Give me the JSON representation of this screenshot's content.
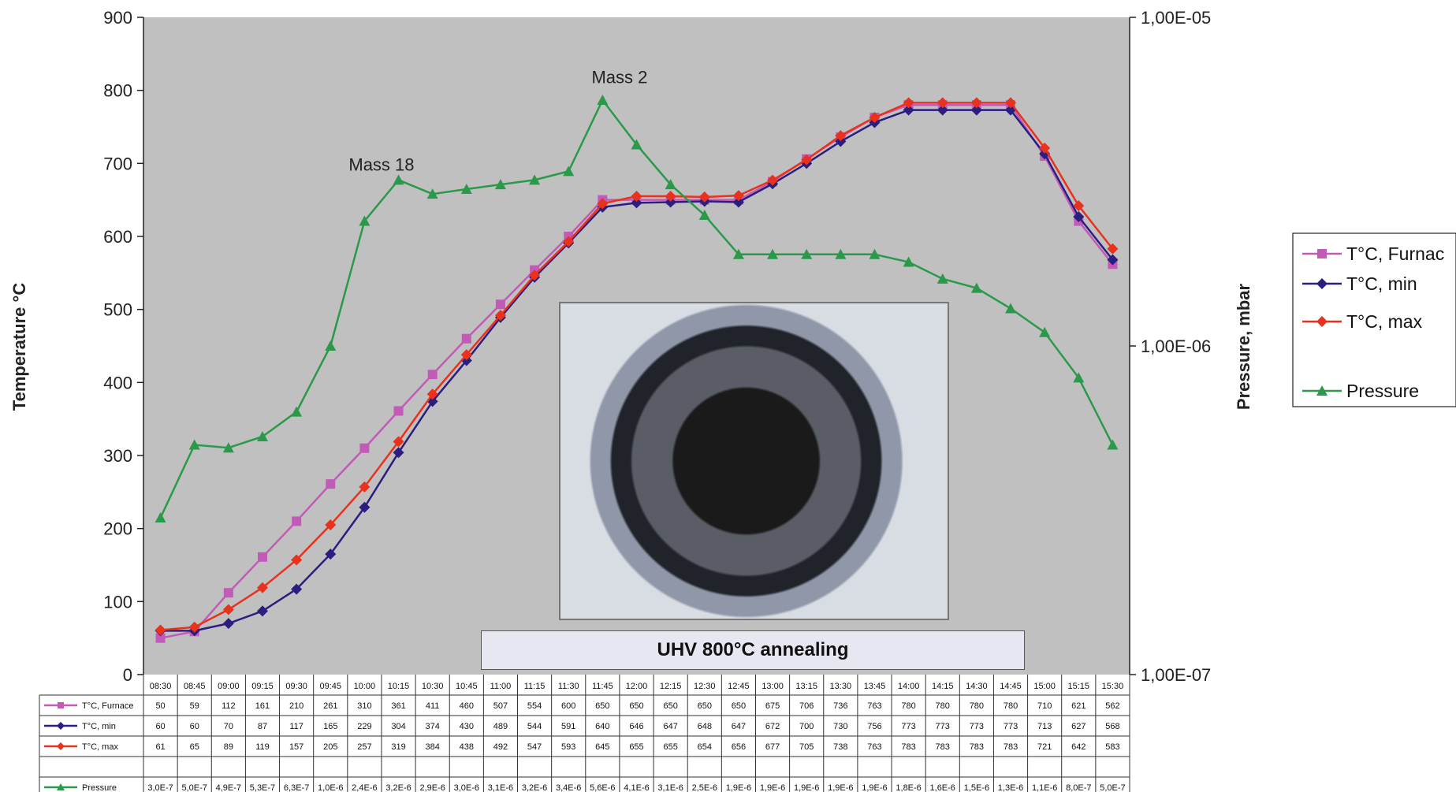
{
  "chart_data": {
    "type": "line",
    "x": [
      "08:30",
      "08:45",
      "09:00",
      "09:15",
      "09:30",
      "09:45",
      "10:00",
      "10:15",
      "10:30",
      "10:45",
      "11:00",
      "11:15",
      "11:30",
      "11:45",
      "12:00",
      "12:15",
      "12:30",
      "12:45",
      "13:00",
      "13:15",
      "13:30",
      "13:45",
      "14:00",
      "14:15",
      "14:30",
      "14:45",
      "15:00",
      "15:15",
      "15:30"
    ],
    "ylabel": "Temperature °C",
    "y2label": "Pressure, mbar",
    "ylim": [
      0,
      900
    ],
    "yticks": [
      "0",
      "100",
      "200",
      "300",
      "400",
      "500",
      "600",
      "700",
      "800",
      "900"
    ],
    "y2scale": "log",
    "y2lim": [
      1e-07,
      1e-05
    ],
    "y2ticks": [
      "1,00E-07",
      "1,00E-06",
      "1,00E-05"
    ],
    "legend_position": "right",
    "series": [
      {
        "name": "T°C, Furnace",
        "legend_name": "T°C, Furnac",
        "table_label": "T°C, Furnace",
        "axis": "left",
        "color": "#c25bb8",
        "marker": "square",
        "values": [
          50,
          59,
          112,
          161,
          210,
          261,
          310,
          361,
          411,
          460,
          507,
          554,
          600,
          650,
          650,
          650,
          650,
          650,
          675,
          706,
          736,
          763,
          780,
          780,
          780,
          780,
          710,
          621,
          562
        ]
      },
      {
        "name": "T°C, min",
        "legend_name": "T°C, min",
        "table_label": "T°C, min",
        "axis": "left",
        "color": "#2a1f80",
        "marker": "diamond",
        "values": [
          60,
          60,
          70,
          87,
          117,
          165,
          229,
          304,
          374,
          430,
          489,
          544,
          591,
          640,
          646,
          647,
          648,
          647,
          672,
          700,
          730,
          756,
          773,
          773,
          773,
          773,
          713,
          627,
          568
        ]
      },
      {
        "name": "T°C, max",
        "legend_name": "T°C, max",
        "table_label": "T°C, max",
        "axis": "left",
        "color": "#e8321e",
        "marker": "diamond",
        "values": [
          61,
          65,
          89,
          119,
          157,
          205,
          257,
          319,
          384,
          438,
          492,
          547,
          593,
          645,
          655,
          655,
          654,
          656,
          677,
          705,
          738,
          763,
          783,
          783,
          783,
          783,
          721,
          642,
          583
        ]
      },
      {
        "name": "Pressure",
        "legend_name": "Pressure",
        "table_label": "Pressure",
        "axis": "right",
        "color": "#2a9a4a",
        "marker": "triangle",
        "values": [
          3e-07,
          5e-07,
          4.9e-07,
          5.3e-07,
          6.3e-07,
          1e-06,
          2.4e-06,
          3.2e-06,
          2.9e-06,
          3e-06,
          3.1e-06,
          3.2e-06,
          3.4e-06,
          5.6e-06,
          4.1e-06,
          3.1e-06,
          2.5e-06,
          1.9e-06,
          1.9e-06,
          1.9e-06,
          1.9e-06,
          1.9e-06,
          1.8e-06,
          1.6e-06,
          1.5e-06,
          1.3e-06,
          1.1e-06,
          8e-07,
          5e-07
        ],
        "table_values": [
          "3,0E-7",
          "5,0E-7",
          "4,9E-7",
          "5,3E-7",
          "6,3E-7",
          "1,0E-6",
          "2,4E-6",
          "3,2E-6",
          "2,9E-6",
          "3,0E-6",
          "3,1E-6",
          "3,2E-6",
          "3,4E-6",
          "5,6E-6",
          "4,1E-6",
          "3,1E-6",
          "2,5E-6",
          "1,9E-6",
          "1,9E-6",
          "1,9E-6",
          "1,9E-6",
          "1,9E-6",
          "1,8E-6",
          "1,6E-6",
          "1,5E-6",
          "1,3E-6",
          "1,1E-6",
          "8,0E-7",
          "5,0E-7"
        ]
      }
    ],
    "annotations": [
      {
        "text": "Mass 18",
        "x_index": 6.5,
        "y": 690
      },
      {
        "text": "Mass 2",
        "x_index": 13.5,
        "y": 810
      }
    ],
    "caption": "UHV 800°C annealing",
    "inset_image": "furnace chamber photo",
    "grid": false,
    "colors": {
      "plot_background": "#c0c0c0"
    }
  }
}
